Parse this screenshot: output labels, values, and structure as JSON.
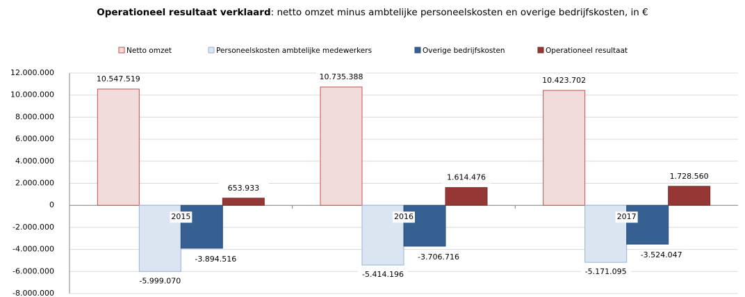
{
  "chart_data": {
    "type": "bar",
    "title": [
      "Operationeel resultaat verklaard",
      ": netto omzet minus ambtelijke personeelskosten en overige bedrijfskosten, in €"
    ],
    "categories": [
      "2015",
      "2016",
      "2017"
    ],
    "series": [
      {
        "name": "Netto omzet",
        "color": "#f2dcdb",
        "border": "#c0504d",
        "values": [
          10547519,
          10735388,
          10423702
        ],
        "value_labels": [
          "10.547.519",
          "10.735.388",
          "10.423.702"
        ]
      },
      {
        "name": "Personeelskosten ambtelijke medewerkers",
        "color": "#dbe5f1",
        "border": "#95b3d7",
        "values": [
          -5999070,
          -5414196,
          -5171095
        ],
        "value_labels": [
          "-5.999.070",
          "-5.414.196",
          "-5.171.095"
        ]
      },
      {
        "name": "Overige bedrijfskosten",
        "color": "#366092",
        "border": "#2c4f78",
        "values": [
          -3894516,
          -3706716,
          -3524047
        ],
        "value_labels": [
          "-3.894.516",
          "-3.706.716",
          "-3.524.047"
        ]
      },
      {
        "name": "Operationeel resultaat",
        "color": "#953735",
        "border": "#7a2d2b",
        "values": [
          653933,
          1614476,
          1728560
        ],
        "value_labels": [
          "653.933",
          "1.614.476",
          "1.728.560"
        ]
      }
    ],
    "ylim": [
      -8000000,
      12000000
    ],
    "yticks": [
      {
        "value": -8000000,
        "label": "-8.000.000"
      },
      {
        "value": -6000000,
        "label": "-6.000.000"
      },
      {
        "value": -4000000,
        "label": "-4.000.000"
      },
      {
        "value": -2000000,
        "label": "-2.000.000"
      },
      0,
      {
        "value": 2000000,
        "label": "2.000.000"
      },
      {
        "value": 4000000,
        "label": "4.000.000"
      },
      {
        "value": 6000000,
        "label": "6.000.000"
      },
      {
        "value": 8000000,
        "label": "8.000.000"
      },
      {
        "value": 10000000,
        "label": "10.000.000"
      },
      {
        "value": 12000000,
        "label": "12.000.000"
      }
    ],
    "grid": true,
    "legend": "top"
  }
}
